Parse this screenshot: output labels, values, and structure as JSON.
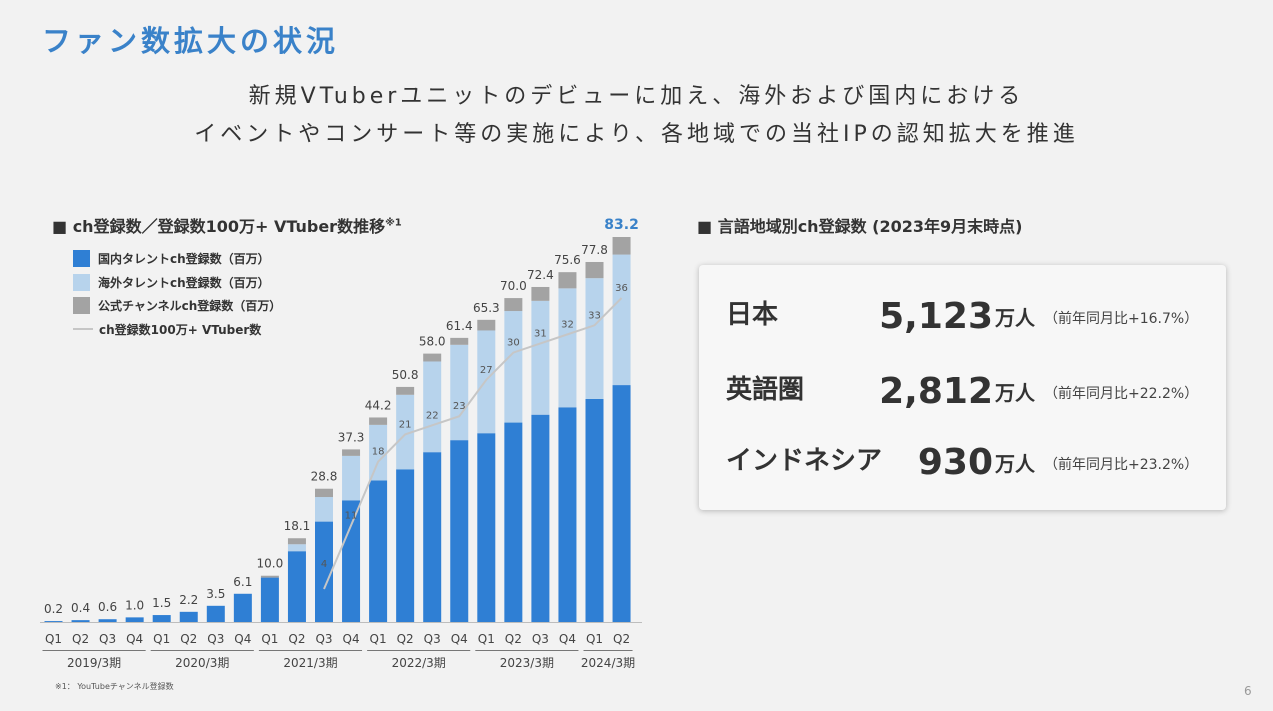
{
  "slide": {
    "title": "ファン数拡大の状況",
    "subtitle_line1": "新規VTuberユニットのデビューに加え、海外および国内における",
    "subtitle_line2": "イベントやコンサート等の実施により、各地域での当社IPの認知拡大を推進",
    "page_number": "6",
    "footnote": "※1： YouTubeチャンネル登録数"
  },
  "colors": {
    "domestic": "#2f7fd4",
    "overseas": "#b7d3ec",
    "official": "#a3a3a3",
    "line": "#c6c6c6",
    "title": "#3a82c9",
    "highlight_total": "#3a82c9"
  },
  "chart_heading": {
    "text": "■ ch登録数／登録数100万+ VTuber数推移",
    "sup": "※1"
  },
  "chart_data": {
    "type": "bar",
    "stacked": true,
    "categories": [
      "Q1",
      "Q2",
      "Q3",
      "Q4",
      "Q1",
      "Q2",
      "Q3",
      "Q4",
      "Q1",
      "Q2",
      "Q3",
      "Q4",
      "Q1",
      "Q2",
      "Q3",
      "Q4",
      "Q1",
      "Q2",
      "Q3",
      "Q4",
      "Q1",
      "Q2"
    ],
    "period_groups": [
      {
        "label": "2019/3期",
        "count": 4
      },
      {
        "label": "2020/3期",
        "count": 4
      },
      {
        "label": "2021/3期",
        "count": 4
      },
      {
        "label": "2022/3期",
        "count": 4
      },
      {
        "label": "2023/3期",
        "count": 4
      },
      {
        "label": "2024/3期",
        "count": 2
      }
    ],
    "series": [
      {
        "name": "国内タレントch登録数（百万）",
        "values": [
          0.2,
          0.4,
          0.6,
          1.0,
          1.5,
          2.2,
          3.5,
          6.1,
          9.6,
          15.3,
          21.7,
          26.3,
          30.6,
          33.0,
          36.7,
          39.3,
          40.8,
          43.1,
          44.8,
          46.4,
          48.2,
          51.2
        ]
      },
      {
        "name": "海外タレントch登録数（百万）",
        "values": [
          0,
          0,
          0,
          0,
          0,
          0,
          0,
          0,
          0,
          1.5,
          5.3,
          9.6,
          12.0,
          16.1,
          19.6,
          20.6,
          22.2,
          24.1,
          24.6,
          25.7,
          26.1,
          28.2
        ]
      },
      {
        "name": "公式チャンネルch登録数（百万）",
        "values": [
          0,
          0,
          0,
          0,
          0,
          0,
          0,
          0,
          0.4,
          1.3,
          1.8,
          1.4,
          1.6,
          1.7,
          1.7,
          1.5,
          2.3,
          2.8,
          3.0,
          3.5,
          3.5,
          3.8
        ]
      }
    ],
    "totals": [
      "0.2",
      "0.4",
      "0.6",
      "1.0",
      "1.5",
      "2.2",
      "3.5",
      "6.1",
      "10.0",
      "18.1",
      "28.8",
      "37.3",
      "44.2",
      "50.8",
      "58.0",
      "61.4",
      "65.3",
      "70.0",
      "72.4",
      "75.6",
      "77.8",
      "83.2"
    ],
    "line_series": {
      "name": "ch登録数100万+ VTuber数",
      "start_index": 10,
      "values": [
        4,
        11,
        18,
        21,
        22,
        23,
        27,
        30,
        31,
        32,
        33,
        36
      ]
    },
    "ylim": [
      0,
      85
    ]
  },
  "region": {
    "heading": "■ 言語地域別ch登録数 (2023年9月末時点)",
    "rows": [
      {
        "name": "日本",
        "value": "5,123",
        "unit": "万人",
        "growth": "（前年同月比+16.7%）"
      },
      {
        "name": "英語圏",
        "value": "2,812",
        "unit": "万人",
        "growth": "（前年同月比+22.2%）"
      },
      {
        "name": "インドネシア",
        "value": "930",
        "unit": "万人",
        "growth": "（前年同月比+23.2%）"
      }
    ]
  }
}
